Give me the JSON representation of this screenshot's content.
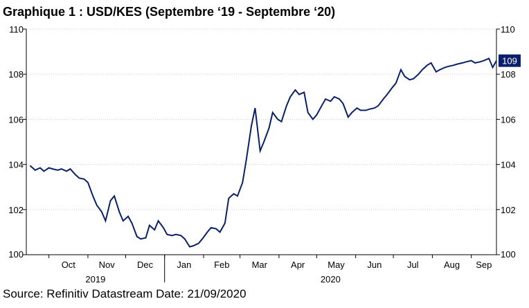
{
  "title": "Graphique 1 : USD/KES (Septembre ‘19 - Septembre ‘20)",
  "source": "Source: Refinitiv Datastream Date: 21/09/2020",
  "colors": {
    "line": "#0a1f6b",
    "flag": "#0a1f6b"
  },
  "chart_data": {
    "type": "line",
    "title": "Graphique 1 : USD/KES (Septembre ‘19 - Septembre ‘20)",
    "xlabel": "",
    "ylabel": "",
    "ylim": [
      100,
      110
    ],
    "yticks": [
      "100",
      "102",
      "104",
      "106",
      "108",
      "110"
    ],
    "xticks": [
      "Oct",
      "Nov",
      "Dec",
      "Jan",
      "Feb",
      "Mar",
      "Apr",
      "May",
      "Jun",
      "Jul",
      "Aug",
      "Sep"
    ],
    "year_labels": [
      "2019",
      "2020"
    ],
    "last_value_label": "109",
    "grid": true,
    "series": [
      {
        "x": [
          "2019-09-16",
          "2019-09-20",
          "2019-09-24",
          "2019-09-27",
          "2019-10-01",
          "2019-10-04",
          "2019-10-08",
          "2019-10-11",
          "2019-10-15",
          "2019-10-18",
          "2019-10-22",
          "2019-10-25",
          "2019-10-29",
          "2019-11-01",
          "2019-11-05",
          "2019-11-08",
          "2019-11-12",
          "2019-11-15",
          "2019-11-19",
          "2019-11-22",
          "2019-11-26",
          "2019-11-29",
          "2019-12-03",
          "2019-12-06",
          "2019-12-10",
          "2019-12-13",
          "2019-12-17",
          "2019-12-20",
          "2019-12-24",
          "2019-12-27",
          "2019-12-31",
          "2020-01-03",
          "2020-01-07",
          "2020-01-10",
          "2020-01-14",
          "2020-01-17",
          "2020-01-21",
          "2020-01-24",
          "2020-01-28",
          "2020-01-31",
          "2020-02-04",
          "2020-02-07",
          "2020-02-11",
          "2020-02-14",
          "2020-02-18",
          "2020-02-21",
          "2020-02-25",
          "2020-02-28",
          "2020-03-03",
          "2020-03-06",
          "2020-03-10",
          "2020-03-13",
          "2020-03-17",
          "2020-03-20",
          "2020-03-24",
          "2020-03-27",
          "2020-03-31",
          "2020-04-03",
          "2020-04-07",
          "2020-04-10",
          "2020-04-14",
          "2020-04-17",
          "2020-04-21",
          "2020-04-24",
          "2020-04-28",
          "2020-05-01",
          "2020-05-05",
          "2020-05-08",
          "2020-05-12",
          "2020-05-15",
          "2020-05-19",
          "2020-05-22",
          "2020-05-26",
          "2020-05-29",
          "2020-06-02",
          "2020-06-05",
          "2020-06-09",
          "2020-06-12",
          "2020-06-16",
          "2020-06-19",
          "2020-06-23",
          "2020-06-26",
          "2020-06-30",
          "2020-07-03",
          "2020-07-07",
          "2020-07-10",
          "2020-07-14",
          "2020-07-17",
          "2020-07-21",
          "2020-07-24",
          "2020-07-28",
          "2020-07-31",
          "2020-08-04",
          "2020-08-07",
          "2020-08-11",
          "2020-08-14",
          "2020-08-18",
          "2020-08-21",
          "2020-08-25",
          "2020-08-28",
          "2020-09-01",
          "2020-09-04",
          "2020-09-08",
          "2020-09-11",
          "2020-09-15",
          "2020-09-18",
          "2020-09-21"
        ],
        "values": [
          103.95,
          103.75,
          103.85,
          103.7,
          103.85,
          103.8,
          103.75,
          103.8,
          103.7,
          103.8,
          103.55,
          103.4,
          103.35,
          103.2,
          102.6,
          102.2,
          101.9,
          101.5,
          102.4,
          102.6,
          101.9,
          101.5,
          101.7,
          101.4,
          100.8,
          100.7,
          100.75,
          101.3,
          101.1,
          101.5,
          101.2,
          100.9,
          100.85,
          100.9,
          100.85,
          100.7,
          100.35,
          100.4,
          100.5,
          100.7,
          101.0,
          101.2,
          101.15,
          101.0,
          101.4,
          102.5,
          102.7,
          102.6,
          103.2,
          104.2,
          105.7,
          106.5,
          104.6,
          105.0,
          105.6,
          106.3,
          106.0,
          105.9,
          106.6,
          107.0,
          107.3,
          107.1,
          107.2,
          106.3,
          106.0,
          106.2,
          106.6,
          106.9,
          106.8,
          107.0,
          106.9,
          106.7,
          106.1,
          106.3,
          106.5,
          106.4,
          106.4,
          106.45,
          106.5,
          106.6,
          106.9,
          107.1,
          107.4,
          107.6,
          108.2,
          107.9,
          107.75,
          107.8,
          108.0,
          108.2,
          108.4,
          108.5,
          108.1,
          108.2,
          108.3,
          108.35,
          108.4,
          108.45,
          108.5,
          108.55,
          108.6,
          108.5,
          108.55,
          108.6,
          108.7,
          108.3,
          108.6
        ]
      }
    ]
  }
}
